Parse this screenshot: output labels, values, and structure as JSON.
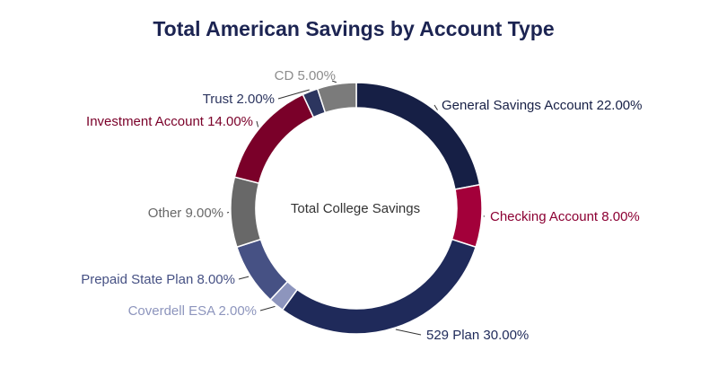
{
  "chart_data": {
    "type": "pie",
    "donut": true,
    "title": "Total American Savings by Account Type",
    "center_label": "Total College Savings",
    "legend": "none",
    "slices": [
      {
        "label": "General Savings Account",
        "value": 22.0,
        "display": "22.00%",
        "color": "#161f45",
        "label_color": "#161f45"
      },
      {
        "label": "Checking Account",
        "value": 8.0,
        "display": "8.00%",
        "color": "#a3003a",
        "label_color": "#8c0033"
      },
      {
        "label": "529 Plan",
        "value": 30.0,
        "display": "30.00%",
        "color": "#1f2a5a",
        "label_color": "#1f2a5a"
      },
      {
        "label": "Coverdell ESA",
        "value": 2.0,
        "display": "2.00%",
        "color": "#8d95bd",
        "label_color": "#8d95bd"
      },
      {
        "label": "Prepaid State Plan",
        "value": 8.0,
        "display": "8.00%",
        "color": "#465184",
        "label_color": "#465184"
      },
      {
        "label": "Other",
        "value": 9.0,
        "display": "9.00%",
        "color": "#686868",
        "label_color": "#686868"
      },
      {
        "label": "Investment Account",
        "value": 14.0,
        "display": "14.00%",
        "color": "#7a0029",
        "label_color": "#7a0029"
      },
      {
        "label": "Trust",
        "value": 2.0,
        "display": "2.00%",
        "color": "#2c355f",
        "label_color": "#2c355f"
      },
      {
        "label": "CD",
        "value": 5.0,
        "display": "5.00%",
        "color": "#7b7b7b",
        "label_color": "#8c8c8c"
      }
    ],
    "title_color": "#1c2452"
  }
}
